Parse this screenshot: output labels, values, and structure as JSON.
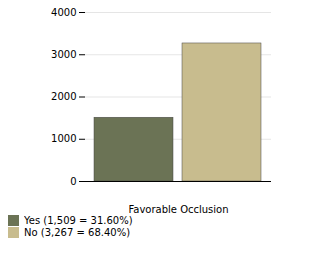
{
  "chart_data": {
    "type": "bar",
    "xlabel": "Favorable Occlusion",
    "categories": [
      null
    ],
    "series": [
      {
        "name": "Yes (1,509 = 31.60%)",
        "color": "#6b7355",
        "values": [
          1509
        ]
      },
      {
        "name": "No (3,267 = 68.40%)",
        "color": "#c8bc8e",
        "values": [
          3267
        ]
      }
    ],
    "ylim": [
      0,
      4000
    ],
    "yticks": [
      0,
      1000,
      2000,
      3000,
      4000
    ],
    "grid": true,
    "legend": "lower left",
    "tick_labels": "y"
  }
}
